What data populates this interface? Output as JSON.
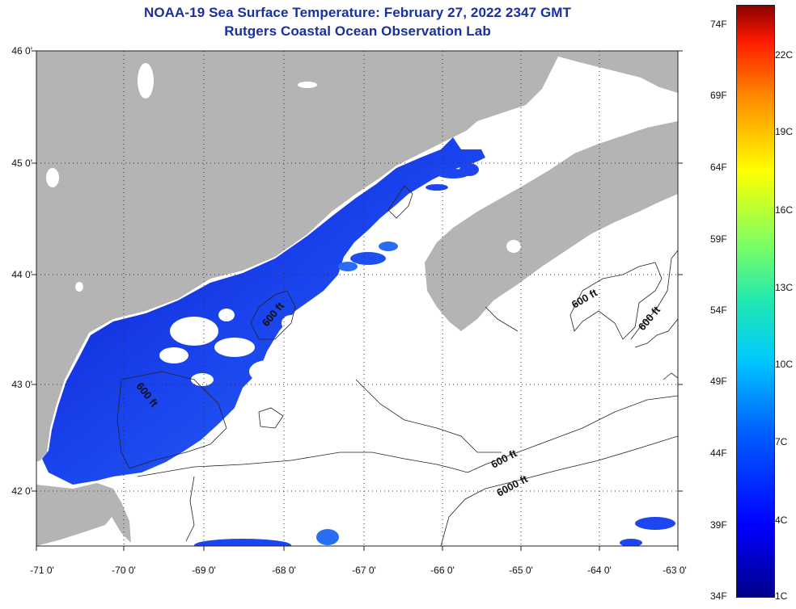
{
  "title": {
    "line1": "NOAA-19 Sea Surface Temperature:  February 27, 2022 2347 GMT",
    "line2": "Rutgers Coastal Ocean Observation Lab"
  },
  "axes": {
    "lat_labels": [
      "46 0'",
      "45 0'",
      "44 0'",
      "43 0'",
      "42 0'"
    ],
    "lon_labels": [
      "-71 0'",
      "-70 0'",
      "-69 0'",
      "-68 0'",
      "-67 0'",
      "-66 0'",
      "-65 0'",
      "-64 0'",
      "-63 0'"
    ]
  },
  "contour_labels": [
    "600 ft",
    "600 ft",
    "600 ft",
    "600 ft",
    "600 ft",
    "6000 ft"
  ],
  "colorbar": {
    "fahrenheit": [
      "74F",
      "69F",
      "64F",
      "59F",
      "54F",
      "49F",
      "44F",
      "39F",
      "34F"
    ],
    "celsius": [
      "22C",
      "19C",
      "16C",
      "13C",
      "10C",
      "7C",
      "4C",
      "1C"
    ]
  },
  "colors": {
    "land": "#b4b4b4",
    "title": "#1a2fa0",
    "sst_dark": "#0a1ed2",
    "sst_mid": "#1e46f0",
    "sst_light": "#2a6df5"
  }
}
